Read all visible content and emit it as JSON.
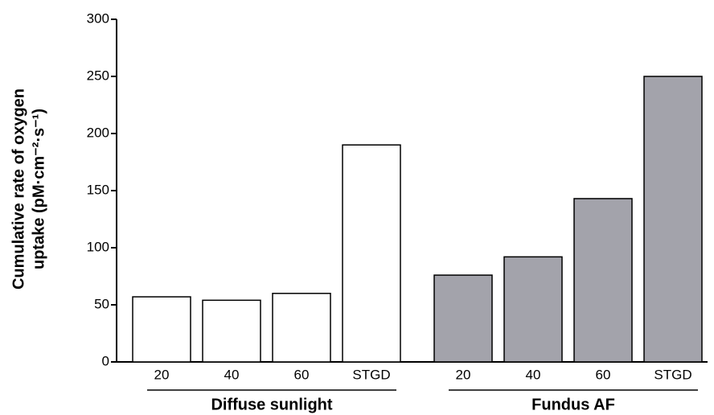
{
  "chart_data": {
    "type": "bar",
    "y_label_lines": [
      "Cumulative rate of oxygen",
      "uptake (pM·cm⁻²·s⁻¹)"
    ],
    "series": [
      {
        "name": "Diffuse sunlight",
        "color": "#ffffff",
        "categories": [
          "20",
          "40",
          "60",
          "STGD"
        ],
        "values": [
          57,
          54,
          60,
          190
        ]
      },
      {
        "name": "Fundus AF",
        "color": "#a3a3ab",
        "categories": [
          "20",
          "40",
          "60",
          "STGD"
        ],
        "values": [
          76,
          92,
          143,
          250
        ]
      }
    ],
    "ylim": [
      0,
      300
    ],
    "yticks": [
      0,
      50,
      100,
      150,
      200,
      250,
      300
    ]
  }
}
